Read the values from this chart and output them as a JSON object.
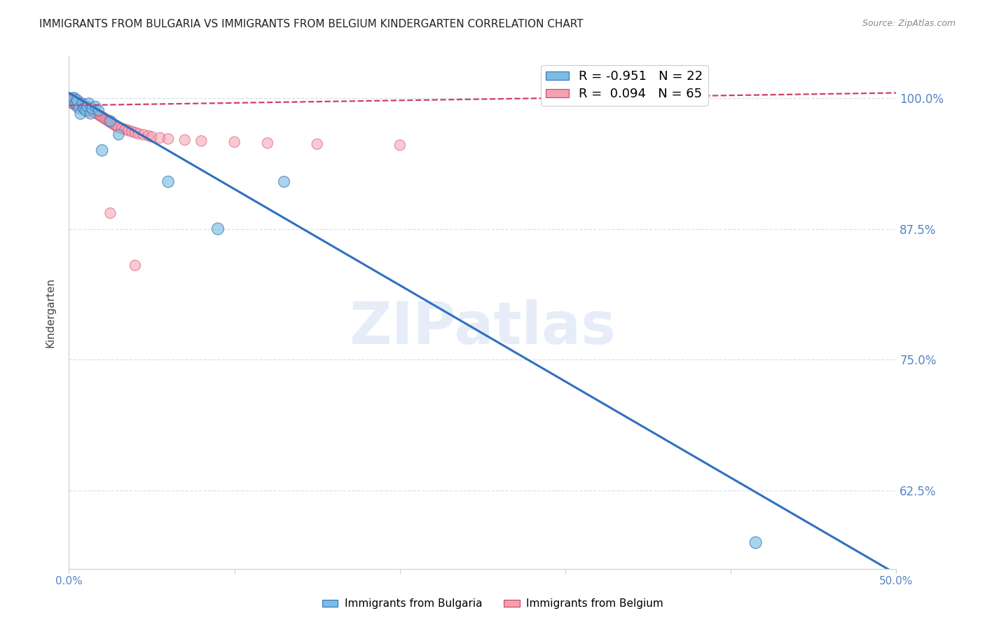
{
  "title": "IMMIGRANTS FROM BULGARIA VS IMMIGRANTS FROM BELGIUM KINDERGARTEN CORRELATION CHART",
  "source": "Source: ZipAtlas.com",
  "ylabel": "Kindergarten",
  "ylabel_right_ticks": [
    0.625,
    0.75,
    0.875,
    1.0
  ],
  "ylabel_right_labels": [
    "62.5%",
    "75.0%",
    "87.5%",
    "100.0%"
  ],
  "xlim": [
    0.0,
    0.5
  ],
  "ylim": [
    0.55,
    1.04
  ],
  "watermark": "ZIPatlas",
  "legend_bulgaria": "R = -0.951   N = 22",
  "legend_belgium": "R =  0.094   N = 65",
  "color_bulgaria": "#7bbde0",
  "color_belgium": "#f4a0b0",
  "trendline_bulgaria_color": "#3070c0",
  "trendline_belgium_color": "#d04060",
  "grid_color": "#d8e0ec",
  "background_color": "#ffffff",
  "title_fontsize": 11,
  "tick_label_color": "#5585c8",
  "bul_trend_x": [
    0.0,
    0.5
  ],
  "bul_trend_y": [
    1.005,
    0.545
  ],
  "bel_trend_x": [
    0.0,
    0.5
  ],
  "bel_trend_y": [
    0.993,
    1.005
  ],
  "bulgaria_x": [
    0.002,
    0.003,
    0.004,
    0.005,
    0.006,
    0.007,
    0.008,
    0.009,
    0.01,
    0.011,
    0.012,
    0.013,
    0.014,
    0.016,
    0.018,
    0.02,
    0.025,
    0.03,
    0.06,
    0.09,
    0.13,
    0.415
  ],
  "bulgaria_y": [
    0.995,
    1.0,
    0.995,
    0.998,
    0.99,
    0.985,
    0.995,
    0.99,
    0.988,
    0.992,
    0.995,
    0.985,
    0.99,
    0.992,
    0.988,
    0.95,
    0.978,
    0.965,
    0.92,
    0.875,
    0.92,
    0.575
  ],
  "bulgaria_sizes": [
    120,
    140,
    120,
    130,
    120,
    130,
    120,
    120,
    120,
    120,
    120,
    120,
    120,
    120,
    120,
    140,
    130,
    120,
    140,
    150,
    130,
    150
  ],
  "belgium_cluster_x": [
    0.001,
    0.001,
    0.002,
    0.002,
    0.002,
    0.003,
    0.003,
    0.003,
    0.004,
    0.004,
    0.004,
    0.005,
    0.005,
    0.005,
    0.006,
    0.006,
    0.007,
    0.007,
    0.008,
    0.008,
    0.009,
    0.009,
    0.01,
    0.01,
    0.011,
    0.011,
    0.012,
    0.012,
    0.013,
    0.014,
    0.015,
    0.016,
    0.017,
    0.018,
    0.019,
    0.02,
    0.021,
    0.022,
    0.023,
    0.024,
    0.025,
    0.026,
    0.027,
    0.028,
    0.029,
    0.03,
    0.032,
    0.034,
    0.036,
    0.038,
    0.04,
    0.042,
    0.045,
    0.048,
    0.05,
    0.055,
    0.06,
    0.07,
    0.08,
    0.1,
    0.12,
    0.15,
    0.2,
    0.04,
    0.025
  ],
  "belgium_cluster_y": [
    1.0,
    0.998,
    1.0,
    0.997,
    0.995,
    1.0,
    0.998,
    0.995,
    0.998,
    0.996,
    0.993,
    0.997,
    0.995,
    0.992,
    0.996,
    0.993,
    0.995,
    0.992,
    0.994,
    0.991,
    0.993,
    0.99,
    0.992,
    0.989,
    0.991,
    0.988,
    0.99,
    0.987,
    0.989,
    0.988,
    0.987,
    0.986,
    0.985,
    0.984,
    0.983,
    0.982,
    0.981,
    0.98,
    0.979,
    0.978,
    0.977,
    0.976,
    0.975,
    0.974,
    0.973,
    0.972,
    0.971,
    0.97,
    0.969,
    0.968,
    0.967,
    0.966,
    0.965,
    0.964,
    0.963,
    0.962,
    0.961,
    0.96,
    0.959,
    0.958,
    0.957,
    0.956,
    0.955,
    0.84,
    0.89
  ],
  "belgium_sizes_val": 120
}
